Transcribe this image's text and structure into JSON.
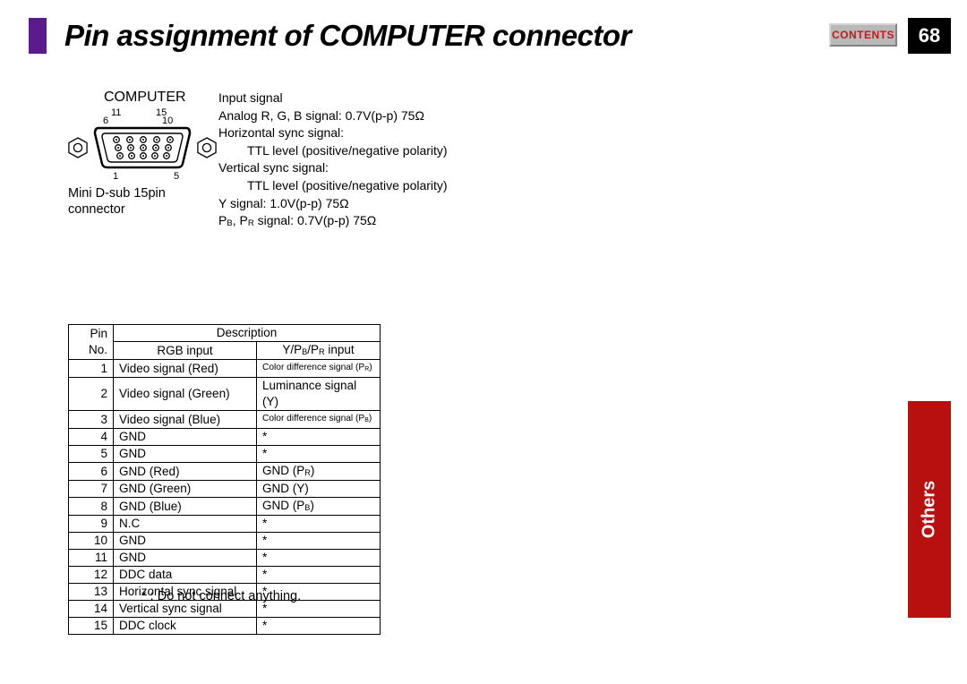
{
  "header": {
    "title": "Pin assignment of COMPUTER connector",
    "contents_label": "CONTENTS",
    "page_number": "68"
  },
  "sidetab": {
    "label": "Others",
    "color": "#b80f0f"
  },
  "connector": {
    "title": "COMPUTER",
    "pin_labels": {
      "top_left": "11",
      "top_right": "15",
      "mid_left": "6",
      "mid_right": "10",
      "bot_left": "1",
      "bot_right": "5"
    },
    "caption_line1": "Mini D-sub 15pin",
    "caption_line2": "connector"
  },
  "specs": {
    "l1": "Input signal",
    "l2": "Analog R, G, B signal: 0.7V(p-p) 75Ω",
    "l3": "Horizontal sync signal:",
    "l4": "TTL level (positive/negative polarity)",
    "l5": "Vertical sync signal:",
    "l6": "TTL level  (positive/negative polarity)",
    "l7": "Y signal: 1.0V(p-p) 75Ω",
    "l8_pre": "P",
    "l8_sub1": "B",
    "l8_mid": ", P",
    "l8_sub2": "R",
    "l8_post": " signal: 0.7V(p-p) 75Ω"
  },
  "table": {
    "header_pin": "Pin No.",
    "header_desc": "Description",
    "header_rgb": "RGB input",
    "header_ypbpr_pre": "Y/P",
    "header_ypbpr_sub1": "B",
    "header_ypbpr_mid": "/P",
    "header_ypbpr_sub2": "R",
    "header_ypbpr_post": " input",
    "rows": [
      {
        "n": "1",
        "rgb": "Video signal (Red)",
        "y": "Color difference signal (P",
        "ysub": "R",
        "ypost": ")",
        "small": true
      },
      {
        "n": "2",
        "rgb": "Video signal (Green)",
        "y": "Luminance signal (Y)"
      },
      {
        "n": "3",
        "rgb": "Video signal (Blue)",
        "y": "Color difference signal (P",
        "ysub": "B",
        "ypost": ")",
        "small": true
      },
      {
        "n": "4",
        "rgb": "GND",
        "y": "*"
      },
      {
        "n": "5",
        "rgb": "GND",
        "y": "*"
      },
      {
        "n": "6",
        "rgb": "GND (Red)",
        "y": "GND (P",
        "ysub": "R",
        "ypost": ")"
      },
      {
        "n": "7",
        "rgb": "GND (Green)",
        "y": "GND (Y)"
      },
      {
        "n": "8",
        "rgb": "GND (Blue)",
        "y": "GND (P",
        "ysub": "B",
        "ypost": ")"
      },
      {
        "n": "9",
        "rgb": "N.C",
        "y": "*"
      },
      {
        "n": "10",
        "rgb": "GND",
        "y": "*"
      },
      {
        "n": "11",
        "rgb": "GND",
        "y": "*"
      },
      {
        "n": "12",
        "rgb": "DDC data",
        "y": "*"
      },
      {
        "n": "13",
        "rgb": "Horizontal sync signal",
        "y": "*"
      },
      {
        "n": "14",
        "rgb": "Vertical sync signal",
        "y": "*"
      },
      {
        "n": "15",
        "rgb": "DDC clock",
        "y": "*"
      }
    ],
    "footnote": "* : Do not connect anything."
  }
}
